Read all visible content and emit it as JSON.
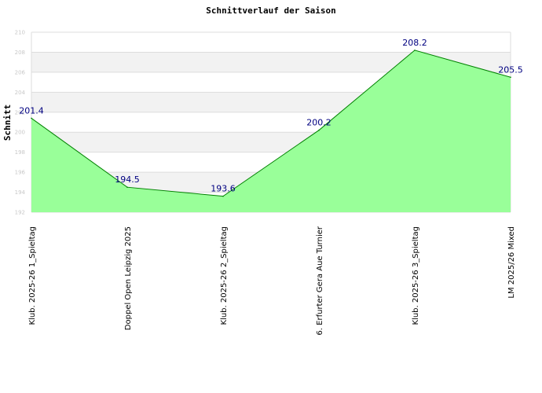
{
  "chart_data": {
    "type": "area",
    "title": "Schnittverlauf der Saison",
    "xlabel": "",
    "ylabel": "Schnitt",
    "categories": [
      "Klub. 2025-26  1_Spieltag",
      "Doppel Open Leipzig 2025",
      "Klub. 2025-26  2_Spieltag",
      "6. Erfurter Gera Aue Turnier",
      "Klub. 2025-26  3_Spieltag",
      "LM 2025/26 Mixed"
    ],
    "values": [
      201.4,
      194.5,
      193.6,
      200.2,
      208.2,
      205.5
    ],
    "value_labels": [
      "201.4",
      "194.5",
      "193.6",
      "200.2",
      "208.2",
      "205.5"
    ],
    "ylim": [
      192,
      210
    ],
    "yticks": [
      "192",
      "194",
      "196",
      "198",
      "200",
      "202",
      "204",
      "206",
      "208",
      "210"
    ],
    "grid": true,
    "legend": "none",
    "colors": {
      "fill": "#99ff99",
      "line": "#008000",
      "label": "#000080",
      "band": "#f2f2f2",
      "grid": "#dddddd"
    }
  }
}
